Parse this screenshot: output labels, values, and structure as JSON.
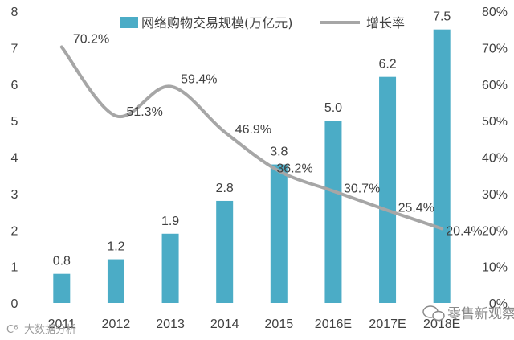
{
  "chart_data": {
    "type": "bar",
    "categories": [
      "2011",
      "2012",
      "2013",
      "2014",
      "2015",
      "2016E",
      "2017E",
      "2018E"
    ],
    "series": [
      {
        "name": "网络购物交易规模(万亿元)",
        "type": "bar",
        "axis": "left",
        "values": [
          0.8,
          1.2,
          1.9,
          2.8,
          3.8,
          5.0,
          6.2,
          7.5
        ],
        "labels": [
          "0.8",
          "1.2",
          "1.9",
          "2.8",
          "3.8",
          "5.0",
          "6.2",
          "7.5"
        ]
      },
      {
        "name": "增长率",
        "type": "line",
        "axis": "right",
        "values": [
          70.2,
          51.3,
          59.4,
          46.9,
          36.2,
          30.7,
          25.4,
          20.4
        ],
        "labels": [
          "70.2%",
          "51.3%",
          "59.4%",
          "46.9%",
          "36.2%",
          "30.7%",
          "25.4%",
          "20.4%"
        ]
      }
    ],
    "y_left": {
      "min": 0,
      "max": 8,
      "step": 1,
      "ticks": [
        "0",
        "1",
        "2",
        "3",
        "4",
        "5",
        "6",
        "7",
        "8"
      ]
    },
    "y_right": {
      "min": 0,
      "max": 80,
      "step": 10,
      "ticks": [
        "0%",
        "10%",
        "20%",
        "30%",
        "40%",
        "50%",
        "60%",
        "70%",
        "80%"
      ]
    },
    "legend": "top-center",
    "grid": false,
    "colors": {
      "bar": "#4bacc6",
      "line": "#a6a6a6"
    }
  },
  "watermarks": {
    "left": "大数据分析",
    "right": "零售新观察"
  }
}
